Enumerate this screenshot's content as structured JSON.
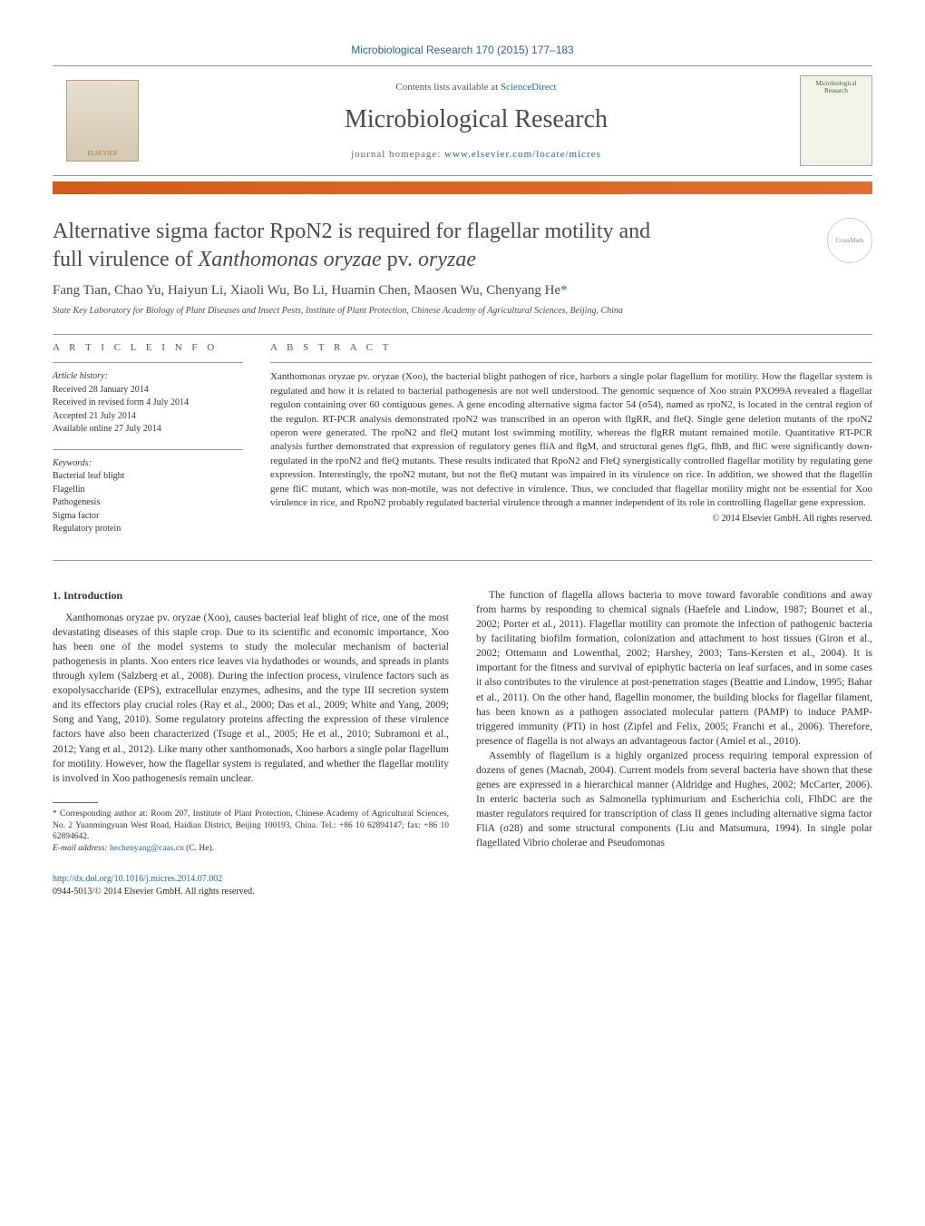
{
  "header": {
    "citation": "Microbiological Research 170 (2015) 177–183",
    "contents_prefix": "Contents lists available at ",
    "contents_link": "ScienceDirect",
    "journal": "Microbiological Research",
    "homepage_prefix": "journal homepage: ",
    "homepage_link": "www.elsevier.com/locate/micres",
    "elsevier": "ELSEVIER",
    "cover_label": "Microbiological Research"
  },
  "colors": {
    "accent_bar": "#d65a1a",
    "link": "#2a6496"
  },
  "title": {
    "line1": "Alternative sigma factor RpoN2 is required for flagellar motility and",
    "line2_a": "full virulence of ",
    "line2_b": "Xanthomonas oryzae",
    "line2_c": " pv. ",
    "line2_d": "oryzae"
  },
  "crossmark": "CrossMark",
  "authors": "Fang Tian, Chao Yu, Haiyun Li, Xiaoli Wu, Bo Li, Huamin Chen, Maosen Wu, Chenyang He",
  "corr_mark": "*",
  "affiliation": "State Key Laboratory for Biology of Plant Diseases and Insect Pests, Institute of Plant Protection, Chinese Academy of Agricultural Sciences, Beijing, China",
  "info": {
    "ai_label": "A R T I C L E   I N F O",
    "history_head": "Article history:",
    "history": [
      "Received 28 January 2014",
      "Received in revised form 4 July 2014",
      "Accepted 21 July 2014",
      "Available online 27 July 2014"
    ],
    "keywords_head": "Keywords:",
    "keywords": [
      "Bacterial leaf blight",
      "Flagellin",
      "Pathogenesis",
      "Sigma factor",
      "Regulatory protein"
    ]
  },
  "abstract": {
    "label": "A B S T R A C T",
    "text": "Xanthomonas oryzae pv. oryzae (Xoo), the bacterial blight pathogen of rice, harbors a single polar flagellum for motility. How the flagellar system is regulated and how it is related to bacterial pathogenesis are not well understood. The genomic sequence of Xoo strain PXO99A revealed a flagellar regulon containing over 60 contiguous genes. A gene encoding alternative sigma factor 54 (σ54), named as rpoN2, is located in the central region of the regulon. RT-PCR analysis demonstrated rpoN2 was transcribed in an operon with flgRR, and fleQ. Single gene deletion mutants of the rpoN2 operon were generated. The rpoN2 and fleQ mutant lost swimming motility, whereas the flgRR mutant remained motile. Quantitative RT-PCR analysis further demonstrated that expression of regulatory genes fliA and flgM, and structural genes flgG, flhB, and fliC were significantly down-regulated in the rpoN2 and fleQ mutants. These results indicated that RpoN2 and FleQ synergistically controlled flagellar motility by regulating gene expression. Interestingly, the rpoN2 mutant, but not the fleQ mutant was impaired in its virulence on rice. In addition, we showed that the flagellin gene fliC mutant, which was non-motile, was not defective in virulence. Thus, we concluded that flagellar motility might not be essential for Xoo virulence in rice, and RpoN2 probably regulated bacterial virulence through a manner independent of its role in controlling flagellar gene expression.",
    "copyright": "© 2014 Elsevier GmbH. All rights reserved."
  },
  "body": {
    "heading": "1. Introduction",
    "col1_p1": "Xanthomonas oryzae pv. oryzae (Xoo), causes bacterial leaf blight of rice, one of the most devastating diseases of this staple crop. Due to its scientific and economic importance, Xoo has been one of the model systems to study the molecular mechanism of bacterial pathogenesis in plants. Xoo enters rice leaves via hydathodes or wounds, and spreads in plants through xylem (Salzberg et al., 2008). During the infection process, virulence factors such as exopolysaccharide (EPS), extracellular enzymes, adhesins, and the type III secretion system and its effectors play crucial roles (Ray et al., 2000; Das et al., 2009; White and Yang, 2009; Song and Yang, 2010). Some regulatory proteins affecting the expression of these virulence factors have also been characterized (Tsuge et al., 2005; He et al., 2010; Subramoni et al., 2012; Yang et al., 2012). Like many other xanthomonads, Xoo harbors a single polar flagellum for motility. However, how the flagellar system is regulated, and whether the flagellar motility is involved in Xoo pathogenesis remain unclear.",
    "col2_p1": "The function of flagella allows bacteria to move toward favorable conditions and away from harms by responding to chemical signals (Haefele and Lindow, 1987; Bourret et al., 2002; Porter et al., 2011). Flagellar motility can promote the infection of pathogenic bacteria by facilitating biofilm formation, colonization and attachment to host tissues (Giron et al., 2002; Ottemann and Lowenthal, 2002; Harshey, 2003; Tans-Kersten et al., 2004). It is important for the fitness and survival of epiphytic bacteria on leaf surfaces, and in some cases it also contributes to the virulence at post-penetration stages (Beattie and Lindow, 1995; Bahar et al., 2011). On the other hand, flagellin monomer, the building blocks for flagellar filament, has been known as a pathogen associated molecular pattern (PAMP) to induce PAMP-triggered immunity (PTI) in host (Zipfel and Felix, 2005; Franchi et al., 2006). Therefore, presence of flagella is not always an advantageous factor (Amiel et al., 2010).",
    "col2_p2": "Assembly of flagellum is a highly organized process requiring temporal expression of dozens of genes (Macnab, 2004). Current models from several bacteria have shown that these genes are expressed in a hierarchical manner (Aldridge and Hughes, 2002; McCarter, 2006). In enteric bacteria such as Salmonella typhimurium and Escherichia coli, FlhDC are the master regulators required for transcription of class II genes including alternative sigma factor FliA (σ28) and some structural components (Liu and Matsumura, 1994). In single polar flagellated Vibrio cholerae and Pseudomonas"
  },
  "footnotes": {
    "corr": "* Corresponding author at: Room 207, Institute of Plant Protection, Chinese Academy of Agricultural Sciences, No. 2 Yuanmingyuan West Road, Haidian District, Beijing 100193, China. Tel.: +86 10 62894147; fax: +86 10 62894642.",
    "email_label": "E-mail address: ",
    "email": "hechenyang@caas.cn",
    "email_suffix": " (C. He)."
  },
  "footer": {
    "doi": "http://dx.doi.org/10.1016/j.micres.2014.07.002",
    "rights": "0944-5013/© 2014 Elsevier GmbH. All rights reserved."
  }
}
